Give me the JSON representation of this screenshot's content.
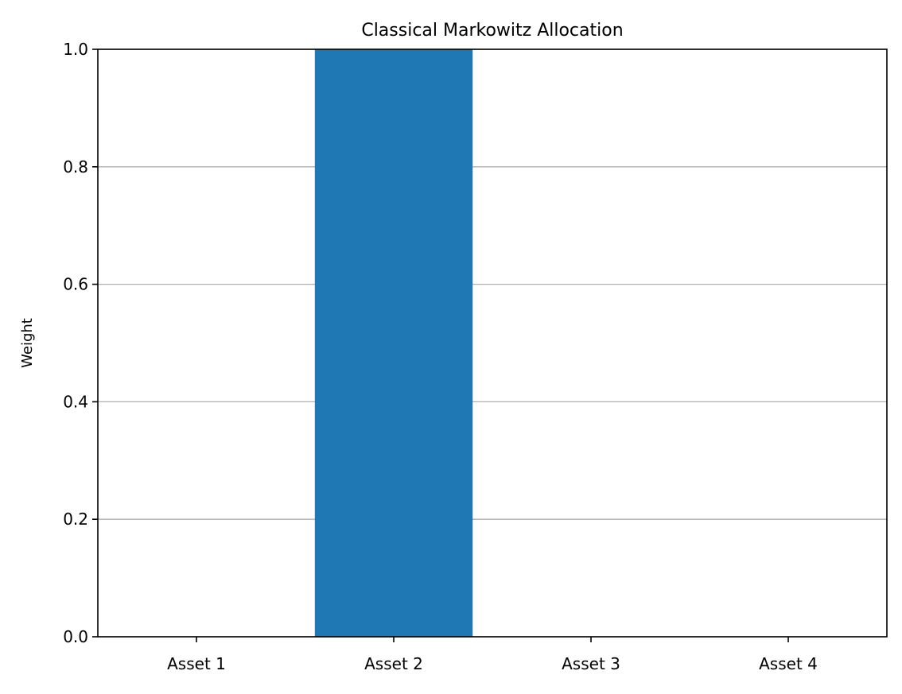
{
  "chart_data": {
    "type": "bar",
    "title": "Classical Markowitz Allocation",
    "xlabel": "",
    "ylabel": "Weight",
    "categories": [
      "Asset 1",
      "Asset 2",
      "Asset 3",
      "Asset 4"
    ],
    "values": [
      0.0,
      1.0,
      0.0,
      0.0
    ],
    "ylim": [
      0,
      1
    ],
    "yticks": [
      "0.0",
      "0.2",
      "0.4",
      "0.6",
      "0.8",
      "1.0"
    ],
    "grid": {
      "y": true,
      "x": false
    },
    "bar_color": "#1f77b4",
    "grid_color": "#b0b0b0"
  }
}
